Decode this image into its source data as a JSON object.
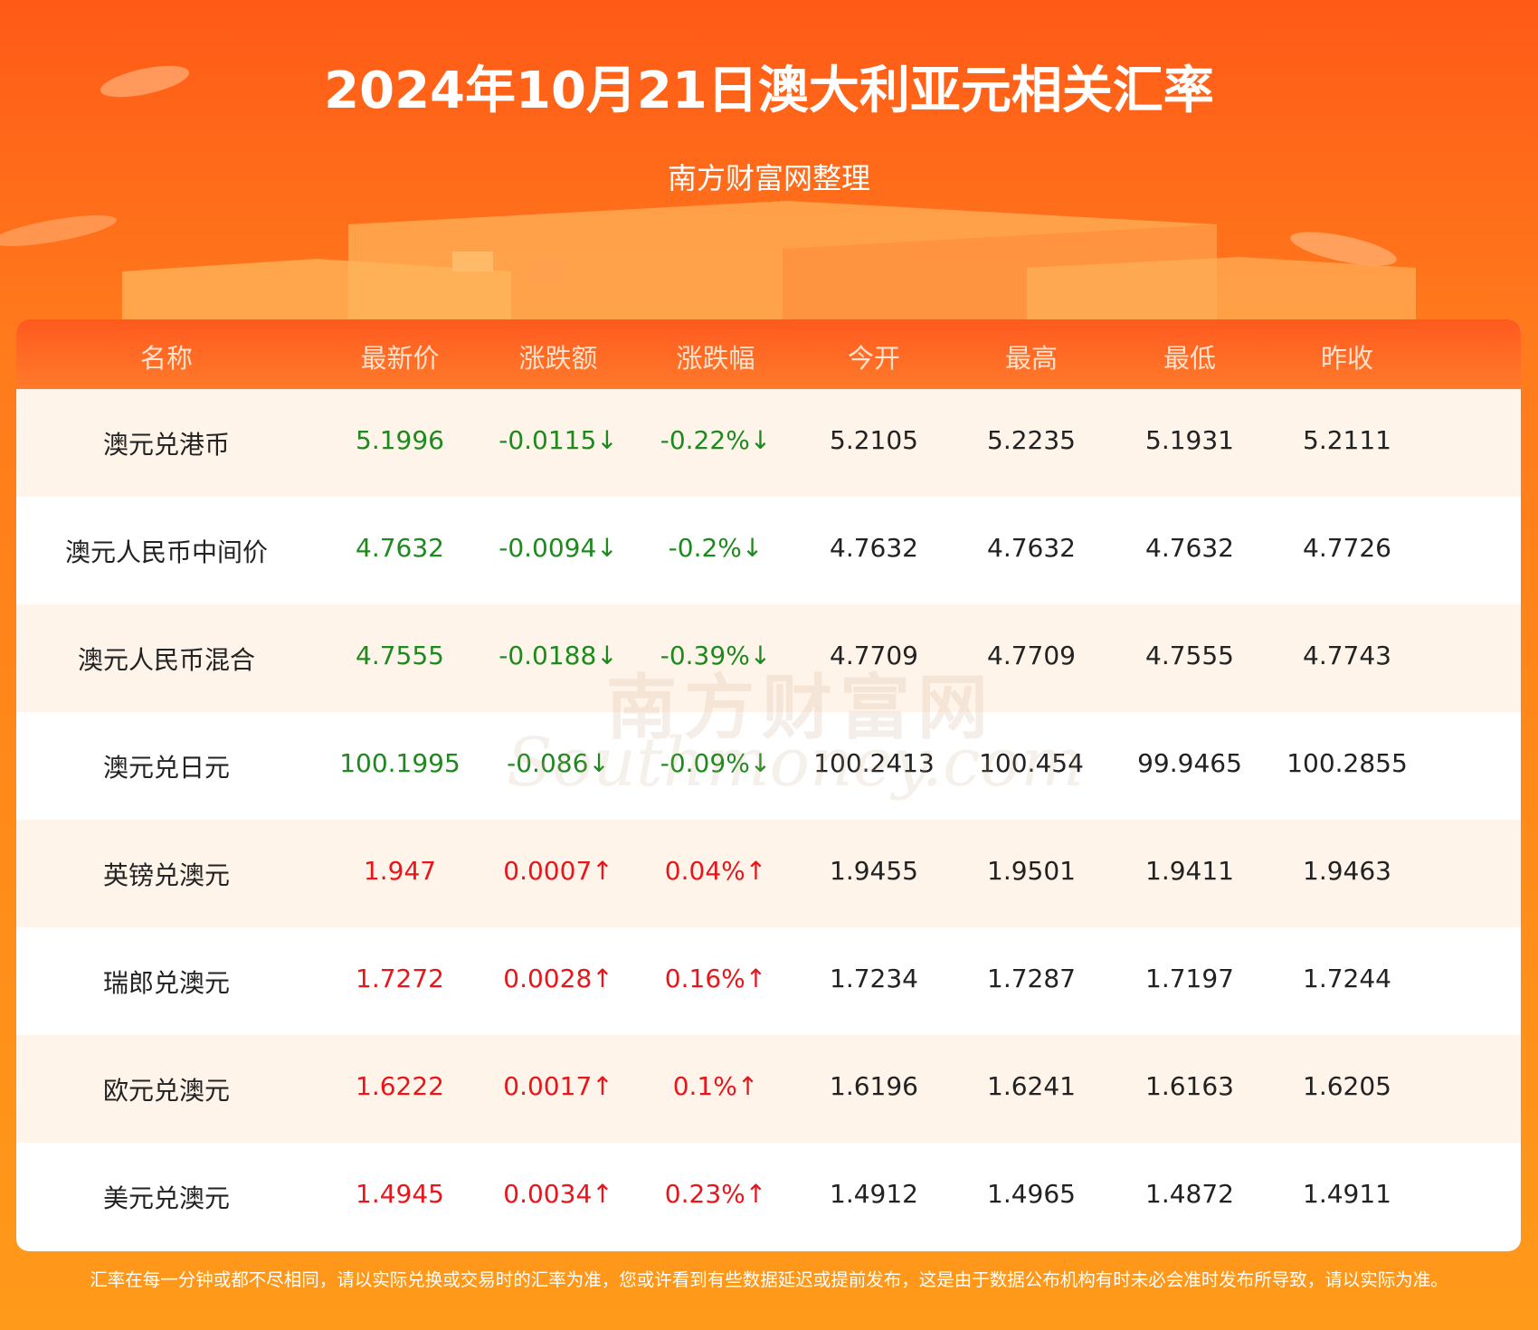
{
  "header": {
    "title": "2024年10月21日澳大利亚元相关汇率",
    "subtitle": "南方财富网整理"
  },
  "watermark": {
    "name": "南方财富网",
    "domain": "Southmoney.com"
  },
  "table": {
    "columns": [
      "名称",
      "最新价",
      "涨跌额",
      "涨跌幅",
      "今开",
      "最高",
      "最低",
      "昨收"
    ],
    "rows": [
      [
        "澳元兑港币",
        "5.1996",
        "-0.0115↓",
        "-0.22%↓",
        "5.2105",
        "5.2235",
        "5.1931",
        "5.2111"
      ],
      [
        "澳元人民币中间价",
        "4.7632",
        "-0.0094↓",
        "-0.2%↓",
        "4.7632",
        "4.7632",
        "4.7632",
        "4.7726"
      ],
      [
        "澳元人民币混合",
        "4.7555",
        "-0.0188↓",
        "-0.39%↓",
        "4.7709",
        "4.7709",
        "4.7555",
        "4.7743"
      ],
      [
        "澳元兑日元",
        "100.1995",
        "-0.086↓",
        "-0.09%↓",
        "100.2413",
        "100.454",
        "99.9465",
        "100.2855"
      ],
      [
        "英镑兑澳元",
        "1.947",
        "0.0007↑",
        "0.04%↑",
        "1.9455",
        "1.9501",
        "1.9411",
        "1.9463"
      ],
      [
        "瑞郎兑澳元",
        "1.7272",
        "0.0028↑",
        "0.16%↑",
        "1.7234",
        "1.7287",
        "1.7197",
        "1.7244"
      ],
      [
        "欧元兑澳元",
        "1.6222",
        "0.0017↑",
        "0.1%↑",
        "1.6196",
        "1.6241",
        "1.6163",
        "1.6205"
      ],
      [
        "美元兑澳元",
        "1.4945",
        "0.0034↑",
        "0.23%↑",
        "1.4912",
        "1.4965",
        "1.4872",
        "1.4911"
      ]
    ],
    "row_colors": [
      "#1e8a1e",
      "#1e8a1e",
      "#1e8a1e",
      "#1e8a1e",
      "#e8161b",
      "#e8161b",
      "#e8161b",
      "#e8161b"
    ]
  },
  "footer": {
    "note": "汇率在每一分钟或都不尽相同，请以实际兑换或交易时的汇率为准，您或许看到有些数据延迟或提前发布，这是由于数据公布机构有时未必会准时发布所导致，请以实际为准。"
  }
}
